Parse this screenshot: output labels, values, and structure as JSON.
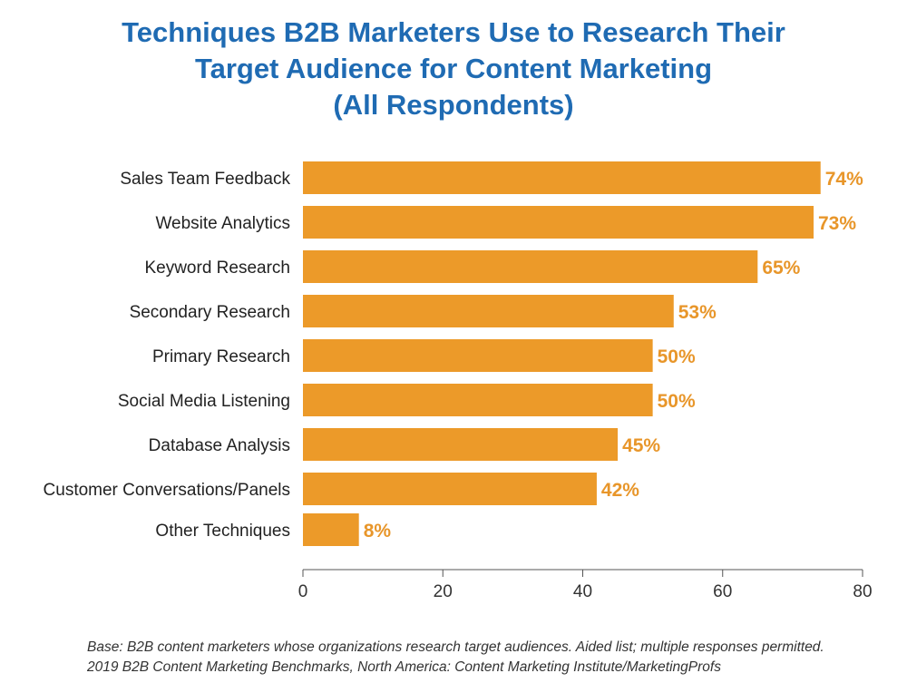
{
  "title_lines": [
    "Techniques B2B Marketers Use to Research Their",
    "Target Audience for Content Marketing",
    "(All Respondents)"
  ],
  "footnote_lines": [
    "Base: B2B content marketers whose organizations research target audiences. Aided list; multiple responses permitted.",
    "2019 B2B Content Marketing Benchmarks, North America: Content Marketing Institute/MarketingProfs"
  ],
  "colors": {
    "bar": "#ec9a29",
    "value_label": "#e8962a",
    "title": "#1f6bb3",
    "axis": "#555555"
  },
  "chart_data": {
    "type": "bar",
    "orientation": "horizontal",
    "title": "Techniques B2B Marketers Use to Research Their Target Audience for Content Marketing (All Respondents)",
    "categories": [
      "Sales Team Feedback",
      "Website Analytics",
      "Keyword Research",
      "Secondary Research",
      "Primary Research",
      "Social Media Listening",
      "Database Analysis",
      "Customer Conversations/Panels",
      "Other Techniques"
    ],
    "values": [
      74,
      73,
      65,
      53,
      50,
      50,
      45,
      42,
      8
    ],
    "value_labels": [
      "74%",
      "73%",
      "65%",
      "53%",
      "50%",
      "50%",
      "45%",
      "42%",
      "8%"
    ],
    "xlim": [
      0,
      80
    ],
    "xticks": [
      0,
      20,
      40,
      60,
      80
    ],
    "xlabel": "",
    "ylabel": "",
    "grid": false,
    "legend": "none"
  }
}
